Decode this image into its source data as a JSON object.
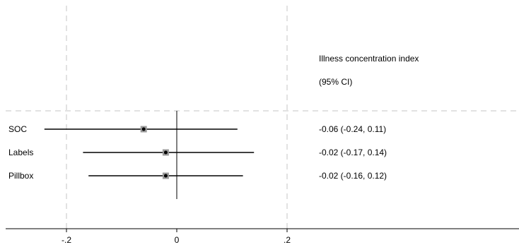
{
  "chart_data": {
    "type": "forest",
    "header": {
      "line1": "Illness concentration index",
      "line2": "(95% CI)"
    },
    "rows": [
      {
        "label": "SOC",
        "estimate": -0.06,
        "lower": -0.24,
        "upper": 0.11,
        "ci_text": "-0.06 (-0.24, 0.11)"
      },
      {
        "label": "Labels",
        "estimate": -0.02,
        "lower": -0.17,
        "upper": 0.14,
        "ci_text": "-0.02 (-0.17, 0.14)"
      },
      {
        "label": "Pillbox",
        "estimate": -0.02,
        "lower": -0.16,
        "upper": 0.12,
        "ci_text": "-0.02 (-0.16, 0.12)"
      }
    ],
    "x_ticks": [
      {
        "value": -0.2,
        "label": "-.2"
      },
      {
        "value": 0,
        "label": "0"
      },
      {
        "value": 0.2,
        "label": ".2"
      }
    ],
    "null_line": 0,
    "grid": true,
    "colors": {
      "ci_line": "#000000",
      "marker_box": "#9a9a9a",
      "gridline": "#d9d9d9"
    }
  }
}
